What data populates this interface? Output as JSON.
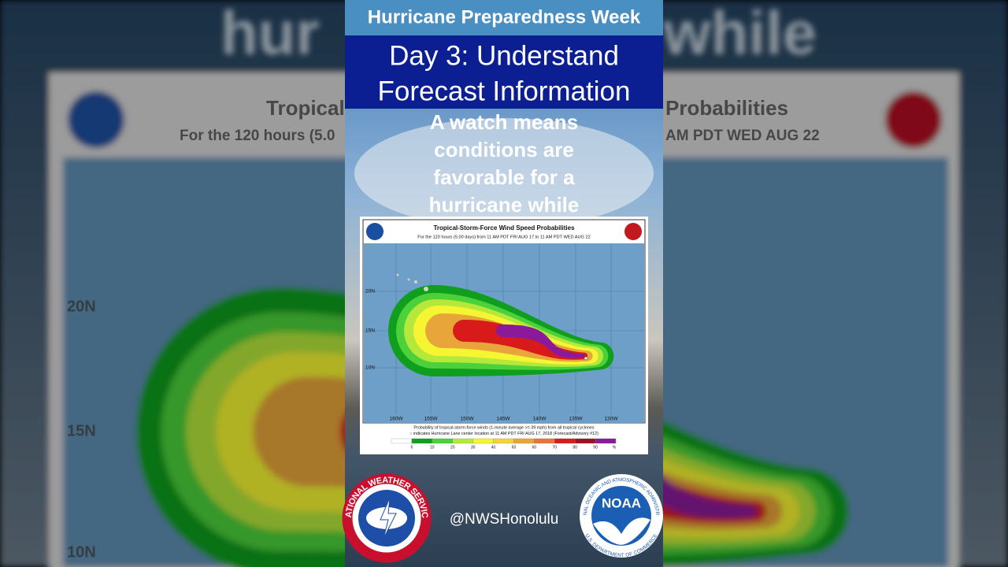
{
  "header": {
    "series_title": "Hurricane Preparedness Week",
    "day_title_lines": [
      "Day 3: Understand",
      "Forecast Information"
    ],
    "caption_lines": [
      "A watch means",
      "conditions are",
      "favorable for a",
      "hurricane while"
    ]
  },
  "map": {
    "title": "Tropical-Storm-Force Wind Speed Probabilities",
    "subtitle": "For the 120 hours (5.00 days) from 11 AM PDT FRI AUG 17 to 11 AM PDT WED AUG 22",
    "lat_labels": [
      "20N",
      "15N",
      "10N"
    ],
    "lon_labels": [
      "160W",
      "155W",
      "150W",
      "145W",
      "140W",
      "135W",
      "130W"
    ],
    "note_lines": [
      "Probability of tropical-storm-force winds (1-minute average >= 39 mph) from all tropical cyclones",
      "○ indicates Hurricane Lane center location at 11 AM PDT FRI AUG 17, 2018 (Forecast/Advisory #12)"
    ],
    "legend": {
      "colors": [
        "#ffffff",
        "#0f9e1e",
        "#4cd13b",
        "#b5e83a",
        "#f5f532",
        "#f5d23a",
        "#e8a53a",
        "#e8743a",
        "#d81a1a",
        "#a01020",
        "#8a1a9a"
      ],
      "labels": [
        "5",
        "10",
        "20",
        "30",
        "40",
        "50",
        "60",
        "70",
        "80",
        "90"
      ],
      "unit": "%"
    }
  },
  "background": {
    "caption_left": "hur",
    "caption_right": "while",
    "title_left": "Tropical",
    "title_right": "Probabilities",
    "subtitle_left": "For the 120 hours (5.0",
    "subtitle_right": "AM PDT WED AUG 22",
    "lat_labels": [
      "20N",
      "15N",
      "10N"
    ]
  },
  "footer": {
    "handle": "@NWSHonolulu",
    "nws_logo_text": "NATIONAL WEATHER SERVICE",
    "noaa_logo": {
      "center": "NOAA",
      "top": "NATIONAL OCEANIC AND ATMOSPHERIC ADMINISTRATION",
      "bottom": "U.S. DEPARTMENT OF COMMERCE"
    }
  }
}
